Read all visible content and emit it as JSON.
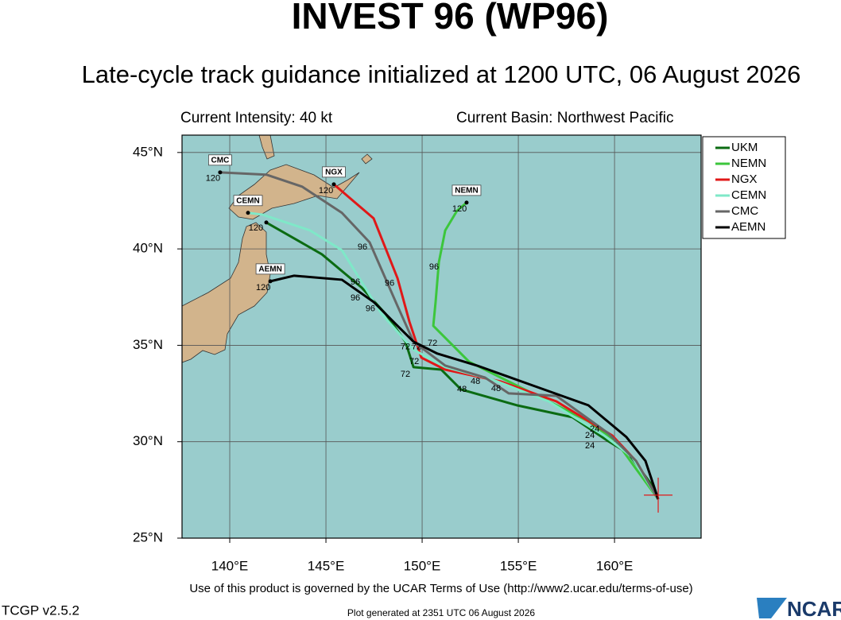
{
  "chart_data": {
    "type": "line",
    "title": "INVEST 96 (WP96)",
    "subtitle": "Late-cycle track guidance initialized at 1200 UTC, 06 August 2026",
    "intensity": "Current Intensity: 40 kt",
    "basin": "Current Basin: Northwest Pacific",
    "xlim": [
      137.52,
      164.5
    ],
    "ylim": [
      25,
      45.9
    ],
    "xticks": [
      {
        "value": 140,
        "label": "140°E"
      },
      {
        "value": 145,
        "label": "145°E"
      },
      {
        "value": 150,
        "label": "150°E"
      },
      {
        "value": 155,
        "label": "155°E"
      },
      {
        "value": 160,
        "label": "160°E"
      }
    ],
    "yticks": [
      {
        "value": 25,
        "label": "25°N"
      },
      {
        "value": 30,
        "label": "30°N"
      },
      {
        "value": 35,
        "label": "35°N"
      },
      {
        "value": 40,
        "label": "40°N"
      },
      {
        "value": 45,
        "label": "45°N"
      }
    ],
    "grid": true,
    "legend": "top-right",
    "series": [
      {
        "name": "UKM",
        "color": "#0b6b12",
        "x": [
          162.27,
          161.94,
          160.7,
          159.67,
          157.81,
          154.92,
          152.02,
          150.99,
          149.55,
          149.13,
          148.1,
          146.86,
          144.79,
          141.9
        ],
        "values": [
          27.02,
          27.76,
          29.41,
          30.03,
          31.27,
          31.89,
          32.71,
          33.74,
          33.87,
          35.19,
          36.63,
          37.99,
          39.72,
          41.37
        ]
      },
      {
        "name": "NEMN",
        "color": "#3cc63c",
        "x": [
          162.27,
          161.12,
          160.08,
          158.64,
          156.98,
          154.5,
          152.44,
          150.58,
          150.7,
          150.87,
          151.2,
          151.82,
          152.31
        ],
        "values": [
          27.02,
          28.59,
          30.03,
          31.06,
          31.89,
          33.12,
          34.15,
          36.01,
          37.25,
          39.31,
          40.96,
          41.99,
          42.4
        ],
        "box": true
      },
      {
        "name": "NGX",
        "color": "#e01818",
        "x": [
          162.27,
          161.12,
          159.88,
          156.98,
          154.09,
          151.2,
          149.96,
          149.34,
          148.72,
          147.48,
          145.41
        ],
        "values": [
          27.02,
          29.0,
          30.32,
          32.09,
          33.12,
          33.74,
          34.36,
          36.22,
          38.48,
          41.58,
          43.35
        ],
        "box": true
      },
      {
        "name": "CEMN",
        "color": "#7fe8c8",
        "x": [
          162.27,
          160.91,
          159.46,
          156.57,
          153.68,
          151.2,
          149.55,
          147.89,
          145.83,
          144.17,
          141.69,
          140.95
        ],
        "values": [
          27.02,
          29.21,
          30.32,
          32.09,
          33.21,
          33.87,
          34.77,
          36.63,
          39.93,
          40.96,
          41.78,
          41.87
        ],
        "box": true
      },
      {
        "name": "CMC",
        "color": "#666666",
        "x": [
          162.27,
          161.12,
          159.67,
          156.98,
          154.5,
          153.26,
          151.2,
          149.55,
          148.72,
          147.27,
          145.83,
          143.76,
          141.9,
          139.5
        ],
        "values": [
          27.02,
          29.0,
          30.44,
          32.38,
          32.51,
          33.33,
          33.95,
          35.19,
          37.04,
          40.34,
          41.87,
          43.23,
          43.85,
          43.97
        ],
        "box": true
      },
      {
        "name": "AEMN",
        "color": "#000000",
        "x": [
          162.27,
          161.61,
          160.62,
          158.64,
          155.74,
          152.85,
          150.79,
          149.55,
          148.72,
          147.48,
          145.83,
          143.35,
          142.11
        ],
        "values": [
          27.02,
          29.0,
          30.24,
          31.89,
          32.92,
          33.95,
          34.57,
          35.19,
          36.01,
          37.25,
          38.4,
          38.61,
          38.32
        ],
        "box": true
      }
    ],
    "hour_labels": [
      {
        "text": 120,
        "lon": 139.13,
        "lat": 43.64
      },
      {
        "text": 120,
        "lon": 145.0,
        "lat": 43.02
      },
      {
        "text": 120,
        "lon": 151.94,
        "lat": 42.07
      },
      {
        "text": 120,
        "lon": 141.36,
        "lat": 41.08
      },
      {
        "text": 120,
        "lon": 141.74,
        "lat": 37.99
      },
      {
        "text": 96,
        "lon": 146.9,
        "lat": 40.09
      },
      {
        "text": 96,
        "lon": 150.62,
        "lat": 39.06
      },
      {
        "text": 96,
        "lon": 148.31,
        "lat": 38.2
      },
      {
        "text": 96,
        "lon": 146.53,
        "lat": 38.28
      },
      {
        "text": 96,
        "lon": 146.53,
        "lat": 37.45
      },
      {
        "text": 96,
        "lon": 147.31,
        "lat": 36.88
      },
      {
        "text": 72,
        "lon": 150.54,
        "lat": 35.1
      },
      {
        "text": 72,
        "lon": 149.13,
        "lat": 34.9
      },
      {
        "text": 72,
        "lon": 149.71,
        "lat": 34.9
      },
      {
        "text": 72,
        "lon": 149.59,
        "lat": 34.15
      },
      {
        "text": 72,
        "lon": 149.13,
        "lat": 33.49
      },
      {
        "text": 48,
        "lon": 152.77,
        "lat": 33.12
      },
      {
        "text": 48,
        "lon": 153.84,
        "lat": 32.75
      },
      {
        "text": 48,
        "lon": 152.07,
        "lat": 32.71
      },
      {
        "text": 24,
        "lon": 158.72,
        "lat": 29.78
      },
      {
        "text": 24,
        "lon": 158.72,
        "lat": 30.32
      },
      {
        "text": 24,
        "lon": 158.97,
        "lat": 30.65
      }
    ],
    "current_position": {
      "lon": 162.27,
      "lat": 27.23
    },
    "terms": "Use of this product is governed by the UCAR Terms of Use (http://www2.ucar.edu/terms-of-use)",
    "version": "TCGP v2.5.2",
    "generated": "Plot generated at 2351 UTC   06 August 2026",
    "logo": "NCAR"
  }
}
